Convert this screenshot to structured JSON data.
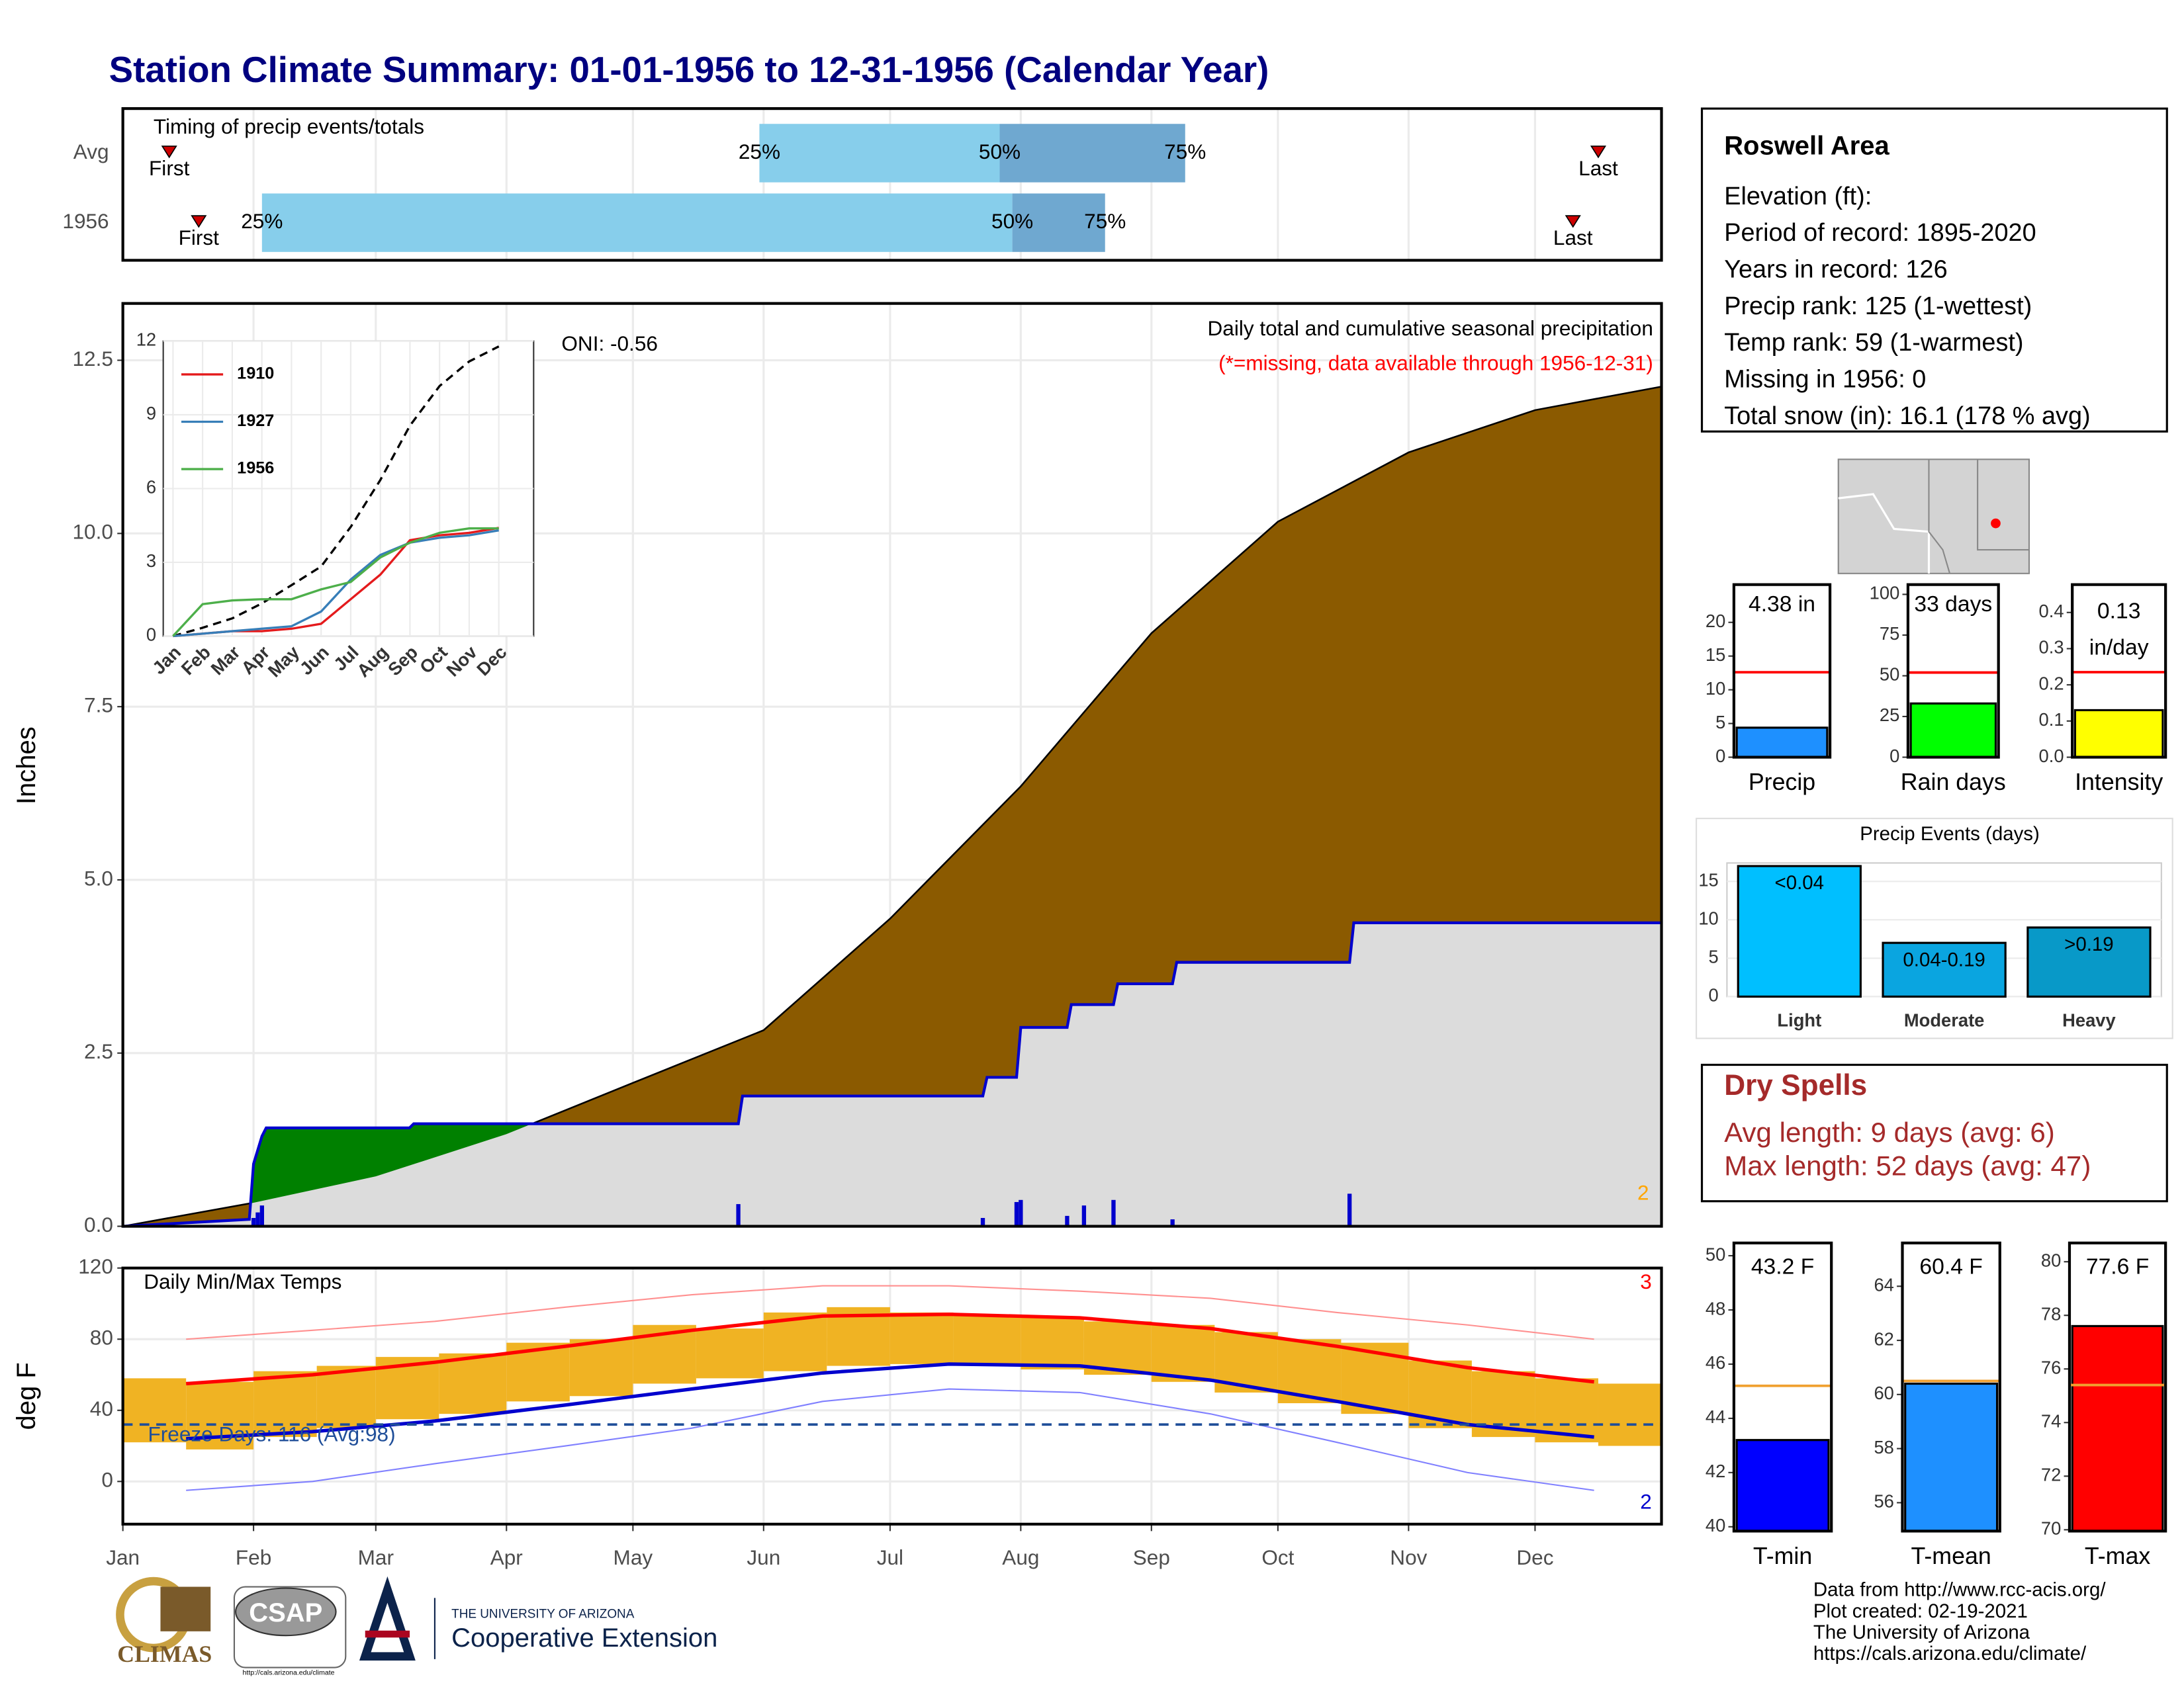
{
  "title": "Station Climate Summary: 01-01-1956 to 12-31-1956 (Calendar Year)",
  "info": {
    "title": "Roswell Area",
    "lines": [
      "Elevation (ft):",
      "Period of record: 1895-2020",
      "Years in record: 126",
      "Precip rank: 125 (1-wettest)",
      "Temp rank: 59 (1-warmest)",
      "Missing in 1956: 0",
      "Total snow (in): 16.1 (178 % avg)"
    ]
  },
  "dry_spells": {
    "title": "Dry Spells",
    "lines": [
      "Avg length: 9 days (avg: 6)",
      "Max length: 52 days (avg: 47)"
    ]
  },
  "footer": [
    "Data from http://www.rcc-acis.org/",
    "Plot created: 02-19-2021",
    "The University of Arizona",
    "https://cals.arizona.edu/climate/"
  ],
  "logos": {
    "climas": "CLIMAS",
    "csap": "CSAP",
    "csap_url": "http://cals.arizona.edu/climate",
    "university": "THE UNIVERSITY OF ARIZONA",
    "extension": "Cooperative Extension"
  },
  "chart_data": [
    {
      "type": "timing",
      "title": "Timing of precip events/totals",
      "xlim": [
        1,
        366
      ],
      "categories": [
        "Avg",
        "1956"
      ],
      "first": [
        12,
        19
      ],
      "q25": [
        152,
        34
      ],
      "q50": [
        209,
        212
      ],
      "q75": [
        253,
        234
      ],
      "last": [
        351,
        345
      ],
      "labels": {
        "first": "First",
        "q25": "25%",
        "q50": "50%",
        "q75": "75%",
        "last": "Last"
      },
      "colors": {
        "low": "#87ceeb",
        "high": "#6fa8d0",
        "marker": "#cc0000"
      }
    },
    {
      "type": "cumulative",
      "title": "Daily total and cumulative seasonal precipitation",
      "subtitle": "(*=missing, data available through 1956-12-31)",
      "annotation": "ONI: -0.56",
      "count_label": "2",
      "ylabel": "Inches",
      "xlim": [
        1,
        366
      ],
      "ylim": [
        0,
        13.32
      ],
      "yticks": [
        {
          "value": 0,
          "label": "0.0"
        },
        2.5,
        {
          "value": 5,
          "label": "5.0"
        },
        7.5,
        {
          "value": 10,
          "label": "10.0"
        },
        12.5
      ],
      "average": {
        "color": "#8b5a00",
        "x": [
          1,
          32,
          61,
          92,
          122,
          153,
          183,
          214,
          245,
          275,
          306,
          336,
          366
        ],
        "values": [
          0,
          0.34,
          0.72,
          1.33,
          2.07,
          2.83,
          4.44,
          6.35,
          8.56,
          10.17,
          11.17,
          11.78,
          12.12
        ]
      },
      "current": {
        "color": "#0000cd",
        "above_color": "#008000",
        "below_color": "#dcdcdc",
        "x": [
          1,
          31,
          32,
          34,
          35,
          69,
          70,
          147,
          148,
          205,
          206,
          213,
          214,
          225,
          226,
          236,
          237,
          250,
          251,
          292,
          293,
          366
        ],
        "values": [
          0,
          0.1,
          0.9,
          1.3,
          1.42,
          1.42,
          1.48,
          1.48,
          1.88,
          1.88,
          2.15,
          2.15,
          2.87,
          2.87,
          3.2,
          3.2,
          3.5,
          3.5,
          3.81,
          3.81,
          4.38,
          4.38
        ]
      },
      "daily": {
        "color": "#0000cd",
        "x": [
          32,
          33,
          34,
          147,
          205,
          213,
          214,
          225,
          229,
          236,
          250,
          292,
          346
        ],
        "values": [
          0.12,
          0.2,
          0.3,
          0.32,
          0.12,
          0.35,
          0.38,
          0.15,
          0.3,
          0.38,
          0.1,
          0.47,
          0.02
        ]
      }
    },
    {
      "type": "line",
      "categories": [
        "Jan",
        "Feb",
        "Mar",
        "Apr",
        "May",
        "Jun",
        "Jul",
        "Aug",
        "Sep",
        "Oct",
        "Nov",
        "Dec"
      ],
      "ylim": [
        0,
        12
      ],
      "yticks": [
        0,
        3,
        6,
        9,
        12
      ],
      "average": {
        "color": "#000000",
        "values": [
          0,
          0.34,
          0.72,
          1.33,
          2.07,
          2.83,
          4.44,
          6.35,
          8.56,
          10.17,
          11.17,
          11.78
        ]
      },
      "series": [
        {
          "name": "1910",
          "color": "#e41a1c",
          "values": [
            0,
            0.1,
            0.2,
            0.2,
            0.3,
            0.5,
            1.5,
            2.5,
            3.9,
            4.1,
            4.2,
            4.4
          ]
        },
        {
          "name": "1927",
          "color": "#377eb8",
          "values": [
            0,
            0.1,
            0.2,
            0.3,
            0.4,
            1.0,
            2.3,
            3.3,
            3.8,
            4.0,
            4.1,
            4.3
          ]
        },
        {
          "name": "1956",
          "color": "#4daf4a",
          "values": [
            0,
            1.3,
            1.45,
            1.5,
            1.5,
            1.9,
            2.2,
            3.2,
            3.8,
            4.2,
            4.38,
            4.38
          ]
        }
      ]
    },
    {
      "type": "temperature",
      "title": "Daily Min/Max Temps",
      "ylabel": "deg F",
      "xlim": [
        1,
        366
      ],
      "ylim": [
        -24,
        120
      ],
      "yticks": [
        0,
        40,
        80,
        120
      ],
      "xticks": [
        {
          "value": 1,
          "label": "Jan"
        },
        {
          "value": 32,
          "label": "Feb"
        },
        {
          "value": 61,
          "label": "Mar"
        },
        {
          "value": 92,
          "label": "Apr"
        },
        {
          "value": 122,
          "label": "May"
        },
        {
          "value": 153,
          "label": "Jun"
        },
        {
          "value": 183,
          "label": "Jul"
        },
        {
          "value": 214,
          "label": "Aug"
        },
        {
          "value": 245,
          "label": "Sep"
        },
        {
          "value": 275,
          "label": "Oct"
        },
        {
          "value": 306,
          "label": "Nov"
        },
        {
          "value": 336,
          "label": "Dec"
        }
      ],
      "series": [
        {
          "color": "#ff0000",
          "width": 2.5,
          "x": [
            16,
            46,
            75,
            106,
            136,
            167,
            197,
            228,
            259,
            289,
            320,
            350
          ],
          "values": [
            55,
            60,
            67,
            76,
            85,
            93,
            94,
            92,
            86,
            76,
            64,
            56
          ]
        },
        {
          "color": "#0000cd",
          "width": 2.5,
          "x": [
            16,
            46,
            75,
            106,
            136,
            167,
            197,
            228,
            259,
            289,
            320,
            350
          ],
          "values": [
            24,
            28,
            34,
            43,
            52,
            61,
            66,
            65,
            57,
            45,
            32,
            25
          ]
        },
        {
          "color": "#ff9090",
          "width": 1,
          "x": [
            16,
            46,
            75,
            106,
            136,
            167,
            197,
            228,
            259,
            289,
            320,
            350
          ],
          "values": [
            80,
            85,
            90,
            98,
            105,
            110,
            110,
            107,
            103,
            95,
            88,
            80
          ]
        },
        {
          "color": "#8080ff",
          "width": 1,
          "x": [
            16,
            46,
            75,
            106,
            136,
            167,
            197,
            228,
            259,
            289,
            320,
            350
          ],
          "values": [
            -5,
            0,
            10,
            20,
            30,
            45,
            52,
            50,
            38,
            22,
            5,
            -5
          ]
        }
      ],
      "bars": {
        "color": "#f0b323",
        "x": [
          1,
          16,
          32,
          47,
          61,
          76,
          92,
          107,
          122,
          137,
          153,
          168,
          183,
          198,
          214,
          229,
          245,
          260,
          275,
          290,
          306,
          321,
          336,
          351
        ],
        "high": [
          58,
          56,
          62,
          65,
          70,
          72,
          78,
          80,
          88,
          86,
          95,
          98,
          95,
          93,
          92,
          90,
          88,
          84,
          80,
          78,
          68,
          62,
          58,
          55
        ],
        "low": [
          22,
          18,
          25,
          30,
          35,
          38,
          45,
          48,
          55,
          58,
          62,
          65,
          66,
          65,
          63,
          60,
          56,
          50,
          44,
          38,
          30,
          25,
          22,
          20
        ]
      },
      "freeze": {
        "value": 32,
        "label": "Freeze Days: 116 (Avg:98)",
        "color": "#1f4e99"
      },
      "annotations": [
        {
          "text": "3",
          "color": "#ff0000"
        },
        {
          "text": "2",
          "color": "#0000cd"
        }
      ]
    },
    {
      "type": "summary",
      "xlabel": "Precip",
      "value": 4.38,
      "value_label": "4.38 in",
      "average": 12.6,
      "color": "#1e90ff",
      "avg_color": "#ff0000",
      "ylim": [
        0,
        25.6
      ],
      "yticks": [
        0,
        5,
        10,
        15,
        20
      ]
    },
    {
      "type": "summary",
      "xlabel": "Rain days",
      "value": 33,
      "value_label": "33 days",
      "average": 52,
      "color": "#00ff00",
      "avg_color": "#ff0000",
      "ylim": [
        0,
        106
      ],
      "yticks": [
        0,
        25,
        50,
        75,
        100
      ]
    },
    {
      "type": "summary",
      "xlabel": "Intensity",
      "value": 0.13,
      "value_label": "0.13",
      "unit_label": "in/day",
      "average": 0.235,
      "color": "#ffff00",
      "avg_color": "#ff0000",
      "ylim": [
        0,
        0.477
      ],
      "yticks": [
        {
          "value": 0,
          "label": "0.0"
        },
        0.1,
        0.2,
        0.3,
        0.4
      ]
    },
    {
      "type": "bar",
      "title": "Precip Events (days)",
      "categories": [
        "Light",
        "Moderate",
        "Heavy"
      ],
      "values": [
        17,
        7,
        9
      ],
      "bar_labels": [
        "<0.04",
        "0.04-0.19",
        ">0.19"
      ],
      "colors": [
        "#00bfff",
        "#0aa5e0",
        "#0899c8"
      ],
      "ylim": [
        0,
        17.4
      ],
      "yticks": [
        0,
        5,
        10,
        15
      ]
    },
    {
      "type": "summary",
      "xlabel": "T-min",
      "value": 43.2,
      "value_label": "43.2 F",
      "average": 45.2,
      "color": "#0000ff",
      "avg_color": "#f0a030",
      "ylim": [
        39.84,
        50.47
      ],
      "yticks": [
        40,
        42,
        44,
        46,
        48,
        50
      ]
    },
    {
      "type": "summary",
      "xlabel": "T-mean",
      "value": 60.4,
      "value_label": "60.4 F",
      "average": 60.5,
      "color": "#1e90ff",
      "avg_color": "#f0a030",
      "ylim": [
        54.95,
        65.6
      ],
      "yticks": [
        56,
        58,
        60,
        62,
        64
      ]
    },
    {
      "type": "summary",
      "xlabel": "T-max",
      "value": 77.6,
      "value_label": "77.6 F",
      "average": 75.4,
      "color": "#ff0000",
      "avg_color": "#f0a030",
      "ylim": [
        69.95,
        80.7
      ],
      "yticks": [
        70,
        72,
        74,
        76,
        78,
        80
      ]
    }
  ]
}
